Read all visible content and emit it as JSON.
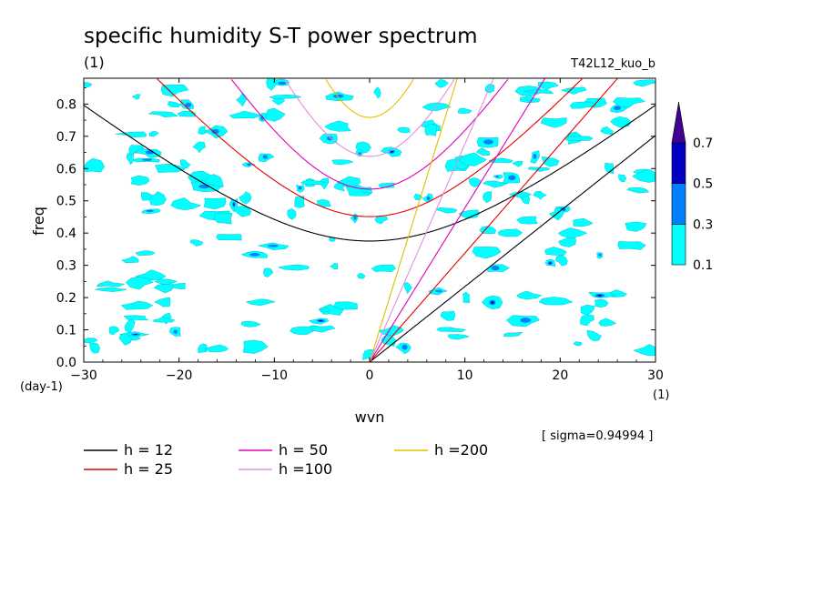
{
  "chart_data": {
    "type": "contour",
    "title": "specific humidity S-T power spectrum",
    "units_label": "(1)",
    "experiment_label": "T42L12_kuo_b",
    "xlabel": "wvn",
    "ylabel": "freq",
    "x_unit_label": "(1)",
    "y_unit_label": "(day-1)",
    "xlim": [
      -30,
      30
    ],
    "ylim": [
      0,
      0.88
    ],
    "x_ticks": [
      -30,
      -20,
      -10,
      0,
      10,
      20,
      30
    ],
    "x_tick_labels": [
      "−30",
      "−20",
      "−10",
      "0",
      "10",
      "20",
      "30"
    ],
    "y_ticks": [
      0,
      0.1,
      0.2,
      0.3,
      0.4,
      0.5,
      0.6,
      0.7,
      0.8
    ],
    "y_tick_labels": [
      "0.0",
      "0.1",
      "0.2",
      "0.3",
      "0.4",
      "0.5",
      "0.6",
      "0.7",
      "0.8"
    ],
    "sigma_note": "[ sigma=0.94994 ]",
    "contour_levels": [
      0.1,
      0.3,
      0.5,
      0.7
    ],
    "colorbar_labels": [
      "0.1",
      "0.3",
      "0.5",
      "0.7"
    ],
    "colorbar_colors": [
      "#00ffff",
      "#0080ff",
      "#0000c0",
      "#400090"
    ],
    "dispersion_curves": [
      {
        "name": "h = 12",
        "h": 12,
        "color": "#000000"
      },
      {
        "name": "h = 25",
        "h": 25,
        "color": "#e00000"
      },
      {
        "name": "h = 50",
        "h": 50,
        "color": "#e000c0"
      },
      {
        "name": "h =100",
        "h": 100,
        "color": "#e090e0"
      },
      {
        "name": "h =200",
        "h": 200,
        "color": "#e0c000"
      }
    ]
  }
}
